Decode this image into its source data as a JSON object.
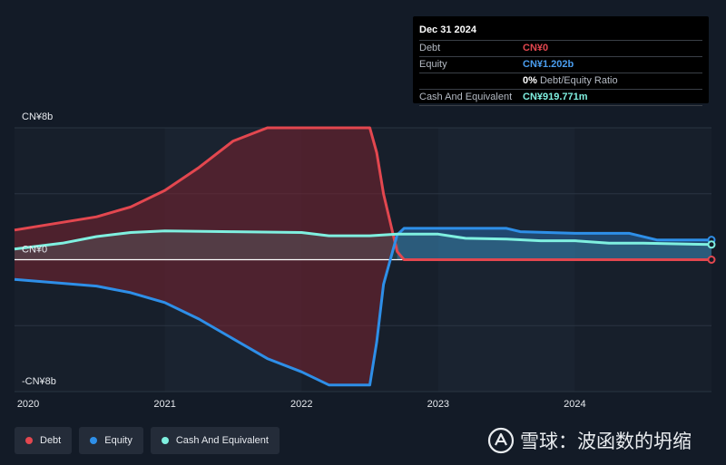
{
  "chart_data": {
    "type": "area",
    "title": "",
    "xlabel": "",
    "ylabel": "",
    "x_ticks": [
      "2020",
      "2021",
      "2022",
      "2023",
      "2024"
    ],
    "y_ticks": [
      {
        "value": 8,
        "label": "CN¥8b"
      },
      {
        "value": 0,
        "label": "CN¥0"
      },
      {
        "value": -8,
        "label": "-CN¥8b"
      }
    ],
    "ylim": [
      -8,
      8
    ],
    "xlim": [
      2019.9,
      2025.0
    ],
    "grid": true,
    "series": [
      {
        "name": "Debt",
        "color": "#e3474f",
        "x": [
          2019.9,
          2020.5,
          2020.75,
          2021.0,
          2021.25,
          2021.5,
          2021.75,
          2022.0,
          2022.2,
          2022.3,
          2022.5,
          2022.55,
          2022.6,
          2022.7,
          2022.75,
          2023.0,
          2023.5,
          2024.0,
          2024.5,
          2025.0
        ],
        "values": [
          1.8,
          2.6,
          3.2,
          4.2,
          5.6,
          7.2,
          8.6,
          9.4,
          9.4,
          9.4,
          9.4,
          6.5,
          4.0,
          0.5,
          0,
          0,
          0,
          0,
          0,
          0
        ]
      },
      {
        "name": "Equity",
        "color": "#2e8fe8",
        "x": [
          2019.9,
          2020.5,
          2020.75,
          2021.0,
          2021.25,
          2021.5,
          2021.75,
          2022.0,
          2022.2,
          2022.3,
          2022.5,
          2022.55,
          2022.6,
          2022.7,
          2022.75,
          2023.0,
          2023.5,
          2023.6,
          2024.0,
          2024.4,
          2024.6,
          2025.0
        ],
        "values": [
          -1.2,
          -1.6,
          -2.0,
          -2.6,
          -3.6,
          -4.8,
          -6.0,
          -6.8,
          -7.6,
          -7.6,
          -7.6,
          -5.0,
          -1.5,
          1.5,
          1.9,
          1.9,
          1.9,
          1.7,
          1.6,
          1.6,
          1.2,
          1.2
        ]
      },
      {
        "name": "Cash And Equivalent",
        "color": "#7ff0e0",
        "x": [
          2019.9,
          2020.25,
          2020.5,
          2020.75,
          2021.0,
          2021.5,
          2022.0,
          2022.2,
          2022.5,
          2022.7,
          2023.0,
          2023.2,
          2023.5,
          2023.75,
          2024.0,
          2024.25,
          2024.5,
          2025.0
        ],
        "values": [
          0.65,
          1.0,
          1.4,
          1.65,
          1.75,
          1.7,
          1.65,
          1.45,
          1.45,
          1.55,
          1.55,
          1.3,
          1.25,
          1.15,
          1.15,
          1.0,
          1.0,
          0.92
        ]
      }
    ],
    "tooltip": {
      "date": "Dec 31 2024",
      "rows": [
        {
          "label": "Debt",
          "value": "CN¥0",
          "color": "#e3474f"
        },
        {
          "label": "Equity",
          "value": "CN¥1.202b",
          "color": "#2e8fe8"
        },
        {
          "label": "",
          "value": "0%",
          "sub": "Debt/Equity Ratio",
          "color": "#ffffff"
        },
        {
          "label": "Cash And Equivalent",
          "value": "CN¥919.771m",
          "color": "#7ff0e0"
        }
      ]
    },
    "legend": [
      {
        "label": "Debt",
        "color": "#e3474f"
      },
      {
        "label": "Equity",
        "color": "#2e8fe8"
      },
      {
        "label": "Cash And Equivalent",
        "color": "#7ff0e0"
      }
    ],
    "legend_position": "bottom-left"
  },
  "watermark": {
    "text": "雪球：波函数的坍缩",
    "icon": "snowball-logo-icon"
  }
}
